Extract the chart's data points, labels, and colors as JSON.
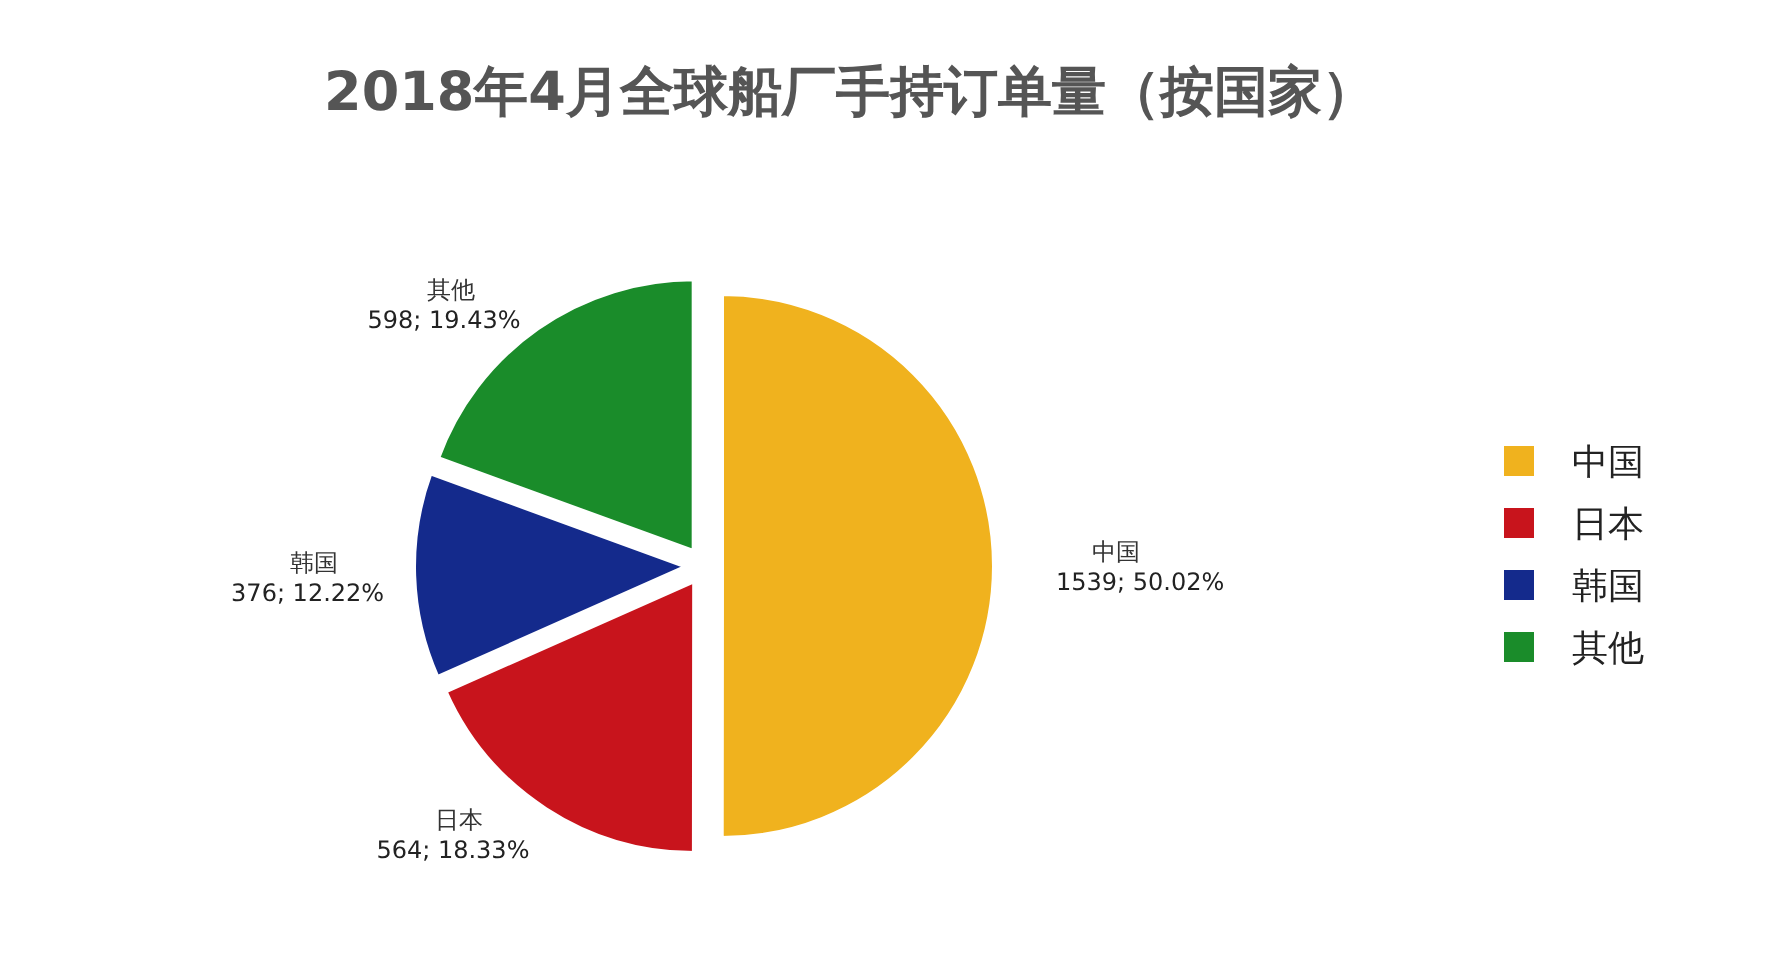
{
  "chart_data": {
    "type": "pie",
    "title": "2018年4月全球船厂手持订单量（按国家）",
    "categories": [
      "中国",
      "日本",
      "韩国",
      "其他"
    ],
    "values": [
      1539,
      564,
      376,
      598
    ],
    "colors": [
      "#f0b21e",
      "#c8141c",
      "#142a8c",
      "#1a8c2a"
    ],
    "value_labels": [
      "1539; 50.02%",
      "564; 18.33%",
      "376; 12.22%",
      "598; 19.43%"
    ],
    "legend": "right"
  }
}
